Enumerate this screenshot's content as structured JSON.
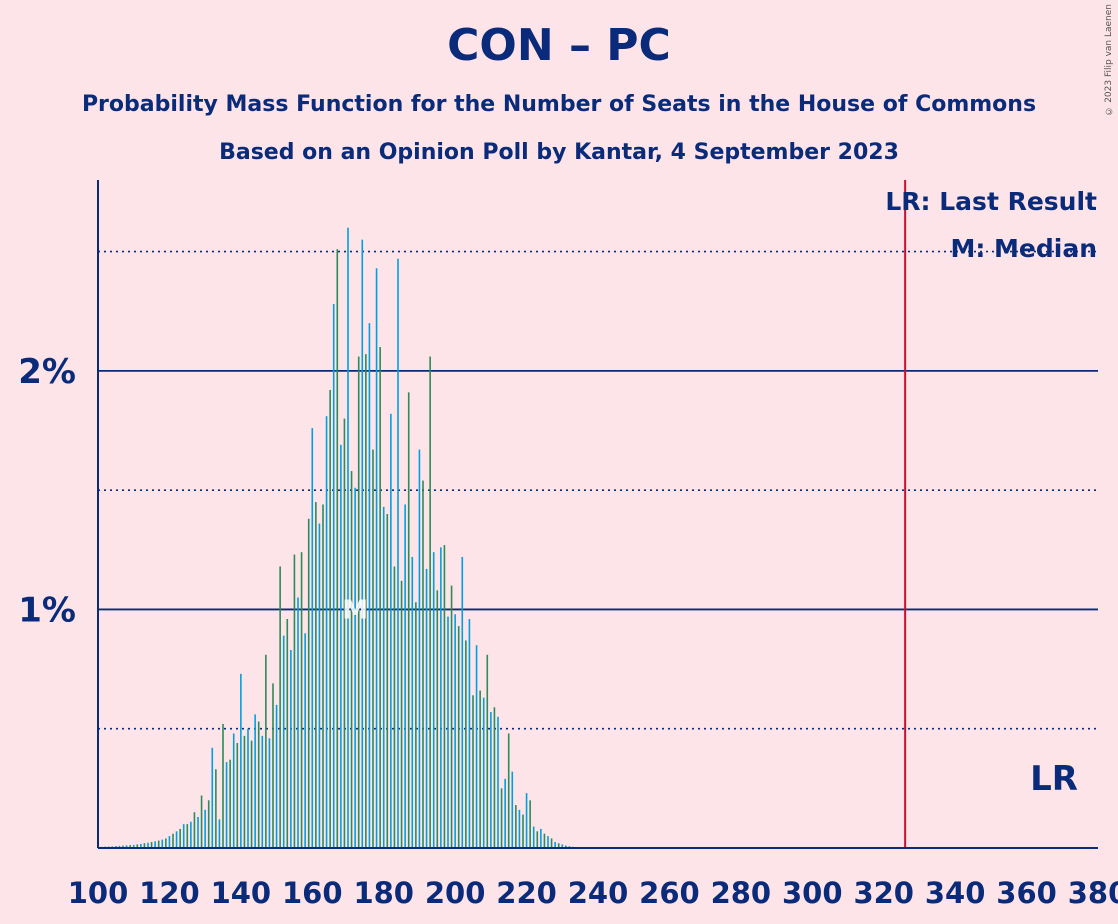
{
  "title": "CON – PC",
  "subtitle1": "Probability Mass Function for the Number of Seats in the House of Commons",
  "subtitle2": "Based on an Opinion Poll by Kantar, 4 September 2023",
  "copyright": "© 2023 Filip van Laenen",
  "colors": {
    "background": "#FDE4E8",
    "text": "#0A2A7A",
    "bar_primary": "#00A0E0",
    "bar_secondary": "#2E8B57",
    "last_result_line": "#C8102E",
    "median_text": "#FFFFFF"
  },
  "chart_data": {
    "type": "bar",
    "xlim": [
      100,
      380
    ],
    "ylim": [
      0,
      2.8
    ],
    "x_ticks": [
      "100",
      "120",
      "140",
      "160",
      "180",
      "200",
      "220",
      "240",
      "260",
      "280",
      "300",
      "320",
      "340",
      "360",
      "380"
    ],
    "y_ticks": [
      "1%",
      "2%"
    ],
    "legend": {
      "last_result": "LR: Last Result",
      "median": "M: Median"
    },
    "last_result": {
      "x": 326,
      "label": "LR"
    },
    "median": {
      "x": 172,
      "label": "M"
    },
    "x": [
      100,
      101,
      102,
      103,
      104,
      105,
      106,
      107,
      108,
      109,
      110,
      111,
      112,
      113,
      114,
      115,
      116,
      117,
      118,
      119,
      120,
      121,
      122,
      123,
      124,
      125,
      126,
      127,
      128,
      129,
      130,
      131,
      132,
      133,
      134,
      135,
      136,
      137,
      138,
      139,
      140,
      141,
      142,
      143,
      144,
      145,
      146,
      147,
      148,
      149,
      150,
      151,
      152,
      153,
      154,
      155,
      156,
      157,
      158,
      159,
      160,
      161,
      162,
      163,
      164,
      165,
      166,
      167,
      168,
      169,
      170,
      171,
      172,
      173,
      174,
      175,
      176,
      177,
      178,
      179,
      180,
      181,
      182,
      183,
      184,
      185,
      186,
      187,
      188,
      189,
      190,
      191,
      192,
      193,
      194,
      195,
      196,
      197,
      198,
      199,
      200,
      201,
      202,
      203,
      204,
      205,
      206,
      207,
      208,
      209,
      210,
      211,
      212,
      213,
      214,
      215,
      216,
      217,
      218,
      219,
      220,
      221,
      222,
      223,
      224,
      225,
      226,
      227,
      228,
      229,
      230,
      231,
      232,
      233,
      234,
      235
    ],
    "values": [
      0.005,
      0.005,
      0.006,
      0.006,
      0.007,
      0.008,
      0.009,
      0.01,
      0.011,
      0.012,
      0.013,
      0.015,
      0.017,
      0.02,
      0.022,
      0.025,
      0.028,
      0.031,
      0.035,
      0.04,
      0.05,
      0.06,
      0.07,
      0.08,
      0.1,
      0.1,
      0.11,
      0.15,
      0.13,
      0.22,
      0.16,
      0.2,
      0.42,
      0.33,
      0.12,
      0.52,
      0.36,
      0.37,
      0.48,
      0.44,
      0.73,
      0.47,
      0.5,
      0.45,
      0.56,
      0.53,
      0.47,
      0.81,
      0.46,
      0.69,
      0.6,
      1.18,
      0.89,
      0.96,
      0.83,
      1.23,
      1.05,
      1.24,
      0.9,
      1.38,
      1.76,
      1.45,
      1.36,
      1.44,
      1.81,
      1.92,
      2.28,
      2.51,
      1.69,
      1.8,
      2.6,
      1.58,
      1.51,
      2.06,
      2.55,
      2.07,
      2.2,
      1.67,
      2.43,
      2.1,
      1.43,
      1.4,
      1.82,
      1.18,
      2.47,
      1.12,
      1.44,
      1.91,
      1.22,
      1.03,
      1.67,
      1.54,
      1.17,
      2.06,
      1.24,
      1.08,
      1.26,
      1.27,
      0.97,
      1.1,
      0.98,
      0.93,
      1.22,
      0.87,
      0.96,
      0.64,
      0.85,
      0.66,
      0.63,
      0.81,
      0.57,
      0.59,
      0.55,
      0.25,
      0.29,
      0.48,
      0.32,
      0.18,
      0.16,
      0.14,
      0.23,
      0.2,
      0.09,
      0.07,
      0.08,
      0.06,
      0.05,
      0.04,
      0.025,
      0.02,
      0.015,
      0.01,
      0.008,
      0.005,
      0.004,
      0.003
    ]
  }
}
